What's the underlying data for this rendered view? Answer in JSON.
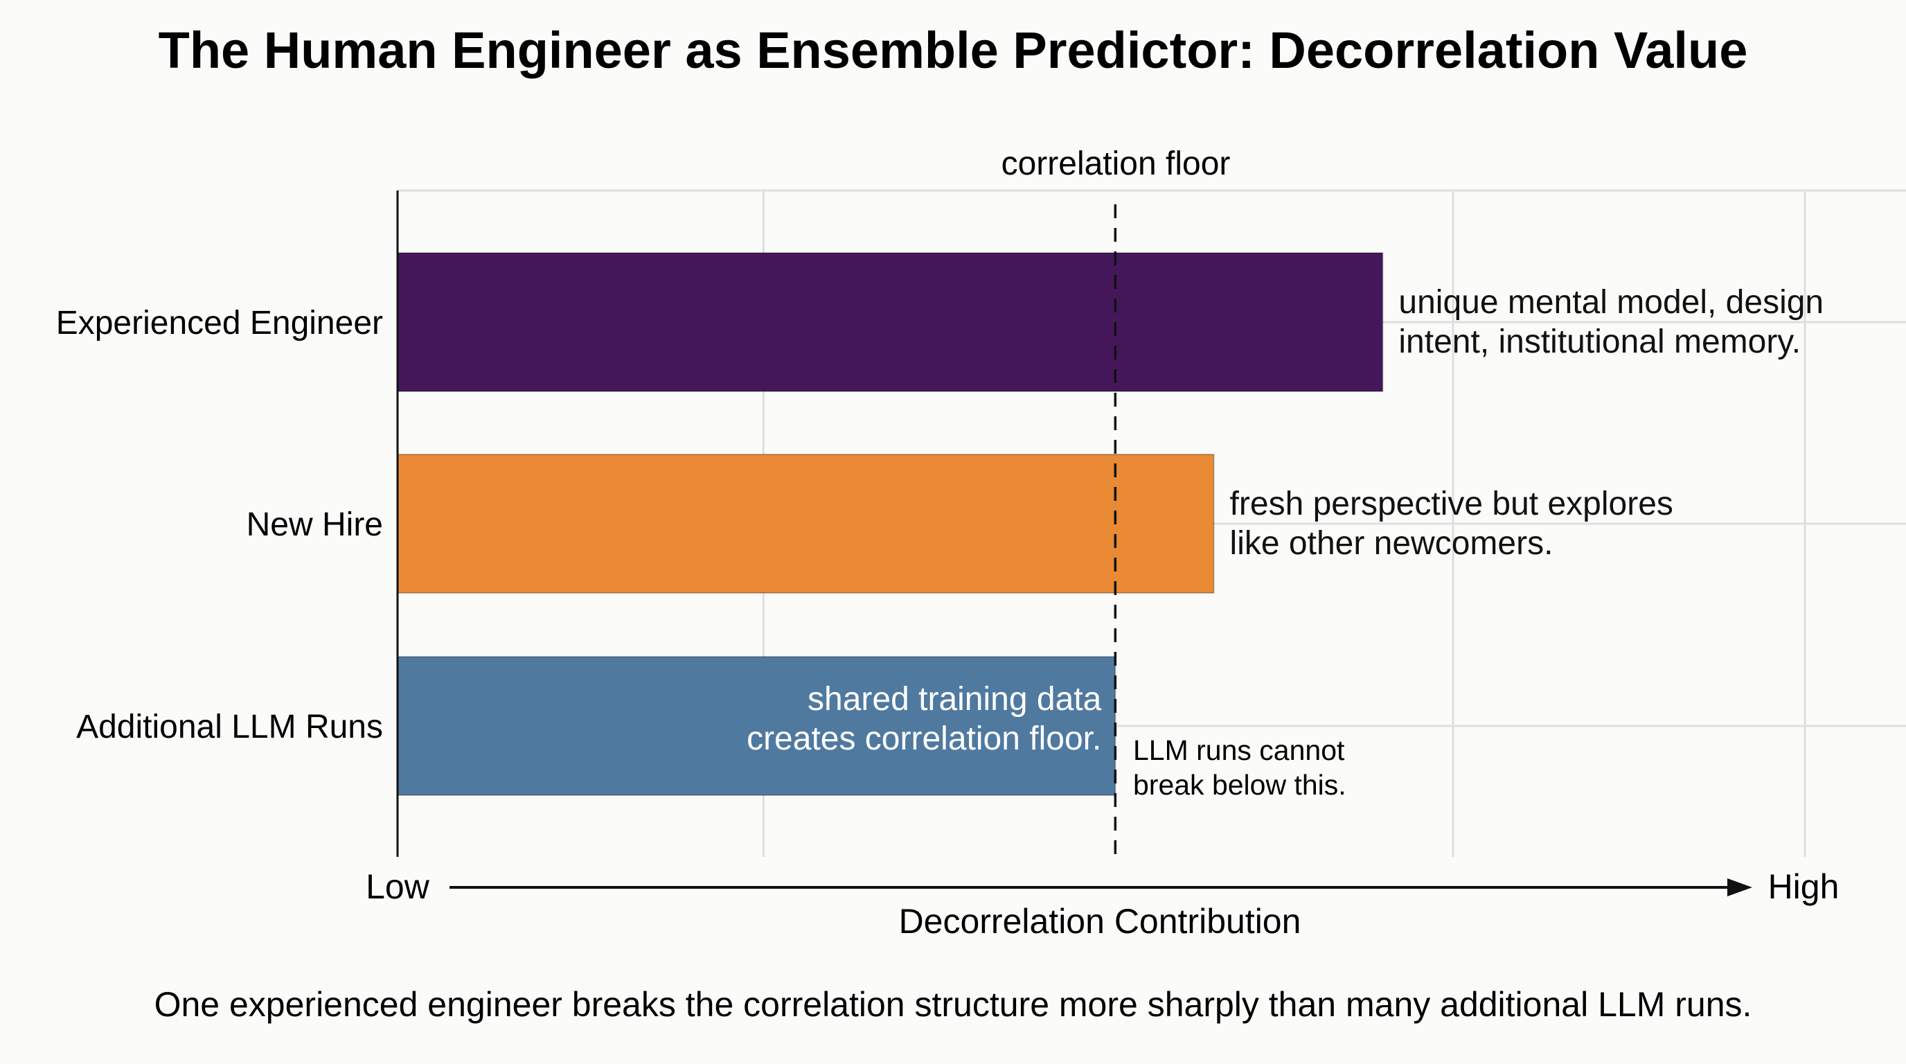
{
  "chart_data": {
    "type": "bar",
    "orientation": "horizontal",
    "title": "The Human Engineer as Ensemble Predictor: Decorrelation Value",
    "xlabel": "Decorrelation Contribution",
    "x_low_label": "Low",
    "x_high_label": "High",
    "xlim": [
      0,
      1
    ],
    "grid": true,
    "gridlines_x": [
      0.26,
      0.75,
      1.0
    ],
    "categories": [
      "Experienced Engineer",
      "New Hire",
      "Additional LLM Runs"
    ],
    "values": [
      0.7,
      0.58,
      0.51
    ],
    "colors": [
      "#44175a",
      "#ea8a35",
      "#5079a0"
    ],
    "annotations": [
      {
        "lines": [
          "unique mental model, design",
          "intent, institutional memory."
        ]
      },
      {
        "lines": [
          "fresh perspective but explores",
          "like other newcomers."
        ]
      },
      {
        "lines": [
          "shared training data",
          "creates correlation floor."
        ]
      }
    ],
    "reference_line": {
      "value": 0.51,
      "label": "correlation floor",
      "style": "dashed",
      "note": [
        "LLM runs cannot",
        "break below this."
      ]
    },
    "caption": "One experienced engineer breaks the correlation structure more sharply than many additional LLM runs."
  }
}
